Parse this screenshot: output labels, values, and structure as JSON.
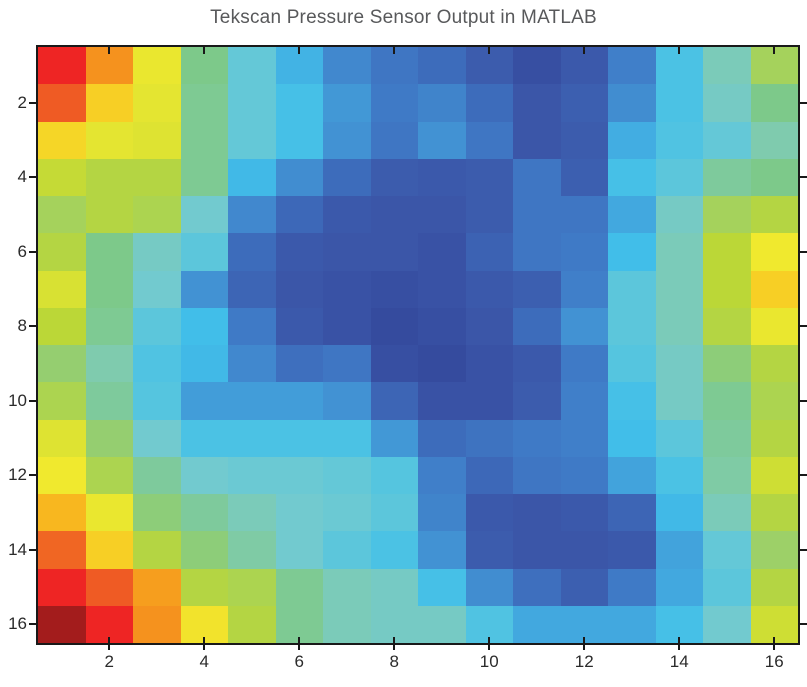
{
  "figure": {
    "background": "#ffffff",
    "axis_border_color": "#191919",
    "title_color": "#58595b",
    "tick_label_color": "#2b2b2b"
  },
  "chart_data": {
    "type": "heatmap",
    "title": "Tekscan Pressure Sensor Output in MATLAB",
    "xlabel": "",
    "ylabel": "",
    "n_rows": 16,
    "n_cols": 16,
    "x_ticks": [
      2,
      4,
      6,
      8,
      10,
      12,
      14,
      16
    ],
    "y_ticks": [
      2,
      4,
      6,
      8,
      10,
      12,
      14,
      16
    ],
    "x_range": [
      0.5,
      16.5
    ],
    "y_range": [
      0.5,
      16.5
    ],
    "grid": false,
    "legend": "none",
    "colormap": "jet-like (low = dark blue, high = dark red)",
    "colormap_stops": [
      [
        0.1,
        "#33479B"
      ],
      [
        0.14,
        "#3B56A8"
      ],
      [
        0.2,
        "#3D68B8"
      ],
      [
        0.25,
        "#3F7AC6"
      ],
      [
        0.3,
        "#4292D3"
      ],
      [
        0.34,
        "#42A8DF"
      ],
      [
        0.38,
        "#41BEE9"
      ],
      [
        0.42,
        "#55C5DF"
      ],
      [
        0.46,
        "#72CACF"
      ],
      [
        0.49,
        "#7FCBAE"
      ],
      [
        0.53,
        "#7DC98A"
      ],
      [
        0.57,
        "#9DD068"
      ],
      [
        0.61,
        "#BBD737"
      ],
      [
        0.64,
        "#D8E133"
      ],
      [
        0.68,
        "#F0E92E"
      ],
      [
        0.72,
        "#F7CF25"
      ],
      [
        0.75,
        "#F8B71F"
      ],
      [
        0.78,
        "#F5921E"
      ],
      [
        0.83,
        "#EF5B24"
      ],
      [
        0.88,
        "#EE2524"
      ],
      [
        0.93,
        "#C21E1E"
      ],
      [
        1.0,
        "#8C1A1A"
      ]
    ],
    "values_normalized": [
      [
        0.88,
        0.78,
        0.67,
        0.53,
        0.44,
        0.36,
        0.28,
        0.24,
        0.21,
        0.16,
        0.12,
        0.15,
        0.26,
        0.4,
        0.48,
        0.58
      ],
      [
        0.83,
        0.72,
        0.66,
        0.52,
        0.44,
        0.39,
        0.31,
        0.25,
        0.27,
        0.21,
        0.14,
        0.17,
        0.29,
        0.4,
        0.47,
        0.53
      ],
      [
        0.71,
        0.66,
        0.65,
        0.52,
        0.44,
        0.39,
        0.3,
        0.24,
        0.3,
        0.24,
        0.14,
        0.16,
        0.35,
        0.41,
        0.44,
        0.49
      ],
      [
        0.62,
        0.6,
        0.6,
        0.52,
        0.37,
        0.29,
        0.21,
        0.16,
        0.15,
        0.16,
        0.24,
        0.17,
        0.39,
        0.43,
        0.51,
        0.53
      ],
      [
        0.58,
        0.6,
        0.59,
        0.46,
        0.28,
        0.2,
        0.15,
        0.14,
        0.14,
        0.16,
        0.24,
        0.24,
        0.34,
        0.47,
        0.58,
        0.6
      ],
      [
        0.6,
        0.53,
        0.47,
        0.43,
        0.21,
        0.15,
        0.14,
        0.14,
        0.13,
        0.18,
        0.24,
        0.25,
        0.38,
        0.48,
        0.61,
        0.68
      ],
      [
        0.64,
        0.53,
        0.46,
        0.3,
        0.19,
        0.14,
        0.13,
        0.12,
        0.13,
        0.15,
        0.17,
        0.26,
        0.43,
        0.48,
        0.61,
        0.72
      ],
      [
        0.61,
        0.52,
        0.43,
        0.38,
        0.25,
        0.15,
        0.13,
        0.11,
        0.12,
        0.14,
        0.21,
        0.3,
        0.43,
        0.48,
        0.6,
        0.67
      ],
      [
        0.56,
        0.49,
        0.41,
        0.37,
        0.28,
        0.22,
        0.24,
        0.12,
        0.11,
        0.13,
        0.15,
        0.25,
        0.42,
        0.47,
        0.55,
        0.6
      ],
      [
        0.59,
        0.51,
        0.42,
        0.32,
        0.32,
        0.32,
        0.3,
        0.19,
        0.13,
        0.13,
        0.16,
        0.26,
        0.39,
        0.47,
        0.52,
        0.59
      ],
      [
        0.65,
        0.56,
        0.46,
        0.4,
        0.4,
        0.4,
        0.4,
        0.31,
        0.21,
        0.23,
        0.25,
        0.26,
        0.38,
        0.43,
        0.51,
        0.6
      ],
      [
        0.68,
        0.59,
        0.51,
        0.46,
        0.45,
        0.45,
        0.44,
        0.42,
        0.26,
        0.2,
        0.24,
        0.25,
        0.33,
        0.4,
        0.5,
        0.63
      ],
      [
        0.75,
        0.67,
        0.55,
        0.51,
        0.48,
        0.46,
        0.45,
        0.43,
        0.27,
        0.15,
        0.14,
        0.15,
        0.19,
        0.37,
        0.48,
        0.6
      ],
      [
        0.82,
        0.72,
        0.6,
        0.55,
        0.5,
        0.46,
        0.43,
        0.4,
        0.3,
        0.16,
        0.14,
        0.14,
        0.15,
        0.33,
        0.44,
        0.57
      ],
      [
        0.88,
        0.83,
        0.77,
        0.6,
        0.59,
        0.52,
        0.48,
        0.47,
        0.39,
        0.29,
        0.22,
        0.17,
        0.25,
        0.34,
        0.43,
        0.6
      ],
      [
        0.97,
        0.88,
        0.78,
        0.69,
        0.6,
        0.52,
        0.48,
        0.47,
        0.47,
        0.41,
        0.34,
        0.34,
        0.34,
        0.39,
        0.46,
        0.63
      ]
    ]
  }
}
